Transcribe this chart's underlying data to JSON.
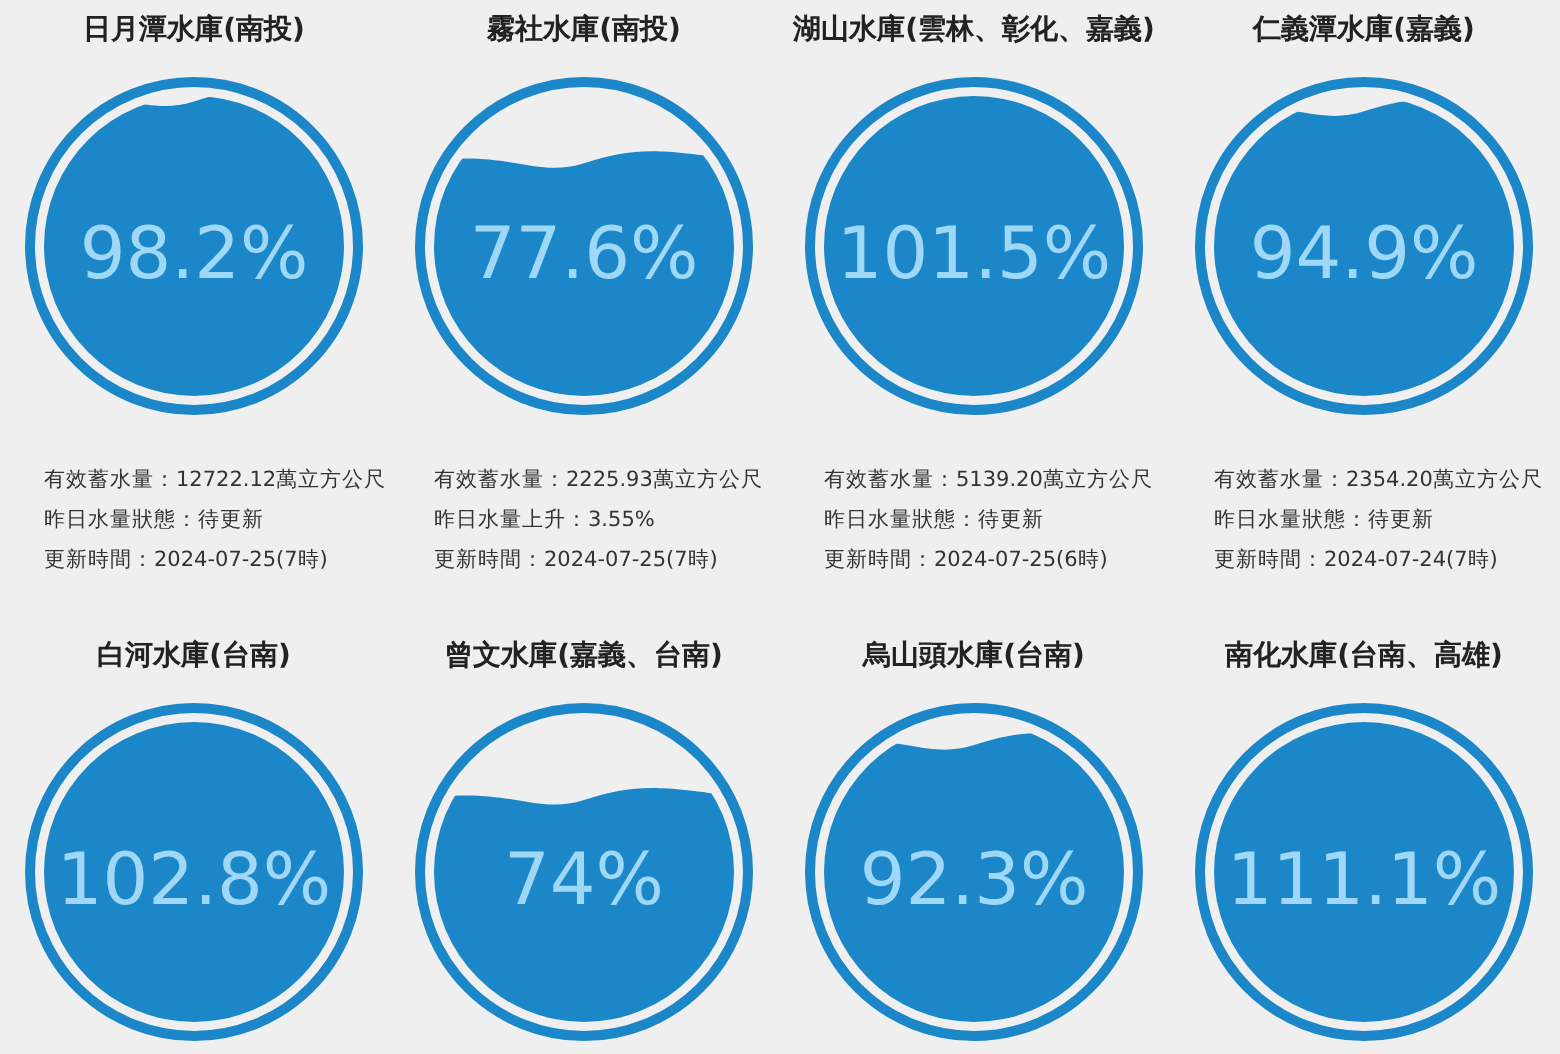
{
  "chart_data": [
    {
      "type": "other",
      "title": "日月潭水庫(南投)",
      "values": [
        98.2
      ],
      "value_labels": [
        "98.2%"
      ],
      "color": "#1b87c9",
      "annotations": [
        "有效蓄水量：12722.12萬立方公尺",
        "昨日水量狀態：待更新",
        "更新時間：2024-07-25(7時)"
      ]
    },
    {
      "type": "other",
      "title": "霧社水庫(南投)",
      "values": [
        77.6
      ],
      "value_labels": [
        "77.6%"
      ],
      "color": "#1b87c9",
      "annotations": [
        "有效蓄水量：2225.93萬立方公尺",
        "昨日水量上升：3.55%",
        "更新時間：2024-07-25(7時)"
      ]
    },
    {
      "type": "other",
      "title": "湖山水庫(雲林、彰化、嘉義)",
      "values": [
        101.5
      ],
      "value_labels": [
        "101.5%"
      ],
      "color": "#1b87c9",
      "annotations": [
        "有效蓄水量：5139.20萬立方公尺",
        "昨日水量狀態：待更新",
        "更新時間：2024-07-25(6時)"
      ]
    },
    {
      "type": "other",
      "title": "仁義潭水庫(嘉義)",
      "values": [
        94.9
      ],
      "value_labels": [
        "94.9%"
      ],
      "color": "#1b87c9",
      "annotations": [
        "有效蓄水量：2354.20萬立方公尺",
        "昨日水量狀態：待更新",
        "更新時間：2024-07-24(7時)"
      ]
    },
    {
      "type": "other",
      "title": "白河水庫(台南)",
      "values": [
        102.8
      ],
      "value_labels": [
        "102.8%"
      ],
      "color": "#1b87c9"
    },
    {
      "type": "other",
      "title": "曾文水庫(嘉義、台南)",
      "values": [
        74
      ],
      "value_labels": [
        "74%"
      ],
      "color": "#1b87c9"
    },
    {
      "type": "other",
      "title": "烏山頭水庫(台南)",
      "values": [
        92.3
      ],
      "value_labels": [
        "92.3%"
      ],
      "color": "#1b87c9"
    },
    {
      "type": "other",
      "title": "南化水庫(台南、高雄)",
      "values": [
        111.1
      ],
      "value_labels": [
        "111.1%"
      ],
      "color": "#1b87c9"
    }
  ]
}
